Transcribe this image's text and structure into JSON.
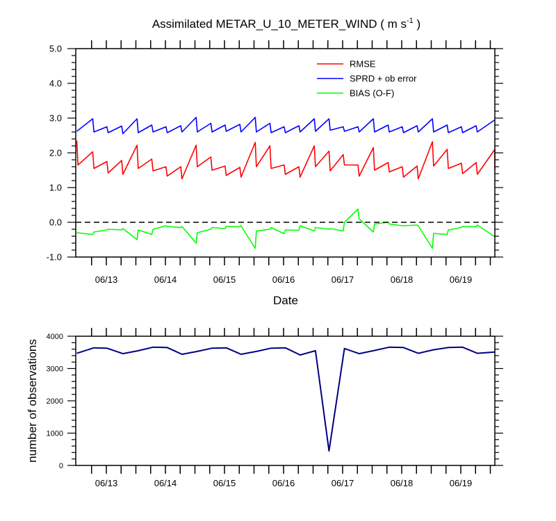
{
  "title": {
    "main": "Assimilated METAR_U_10_METER_WIND ( m s",
    "sup": "-1",
    "tail": " )"
  },
  "colors": {
    "rmse": "#ff0000",
    "sprd": "#0000ff",
    "bias": "#00ff00",
    "obs": "#000080"
  },
  "chart_data": [
    {
      "type": "line",
      "title": "Assimilated METAR_U_10_METER_WIND ( m s-1 )",
      "xlabel": "Date",
      "ylabel": "",
      "x_tick_labels": [
        "06/13",
        "06/14",
        "06/15",
        "06/16",
        "06/17",
        "06/18",
        "06/19"
      ],
      "y_tick_labels": [
        "5.0",
        "4.0",
        "3.0",
        "2.0",
        "1.0",
        "0.0",
        "-1.0"
      ],
      "ylim": [
        -1,
        5
      ],
      "xlim": [
        0,
        7.1
      ],
      "legend_position": "top-right",
      "zero_line": "dashed",
      "series": [
        {
          "name": "RMSE",
          "color": "#ff0000",
          "points": [
            [
              0,
              2.35
            ],
            [
              0.02,
              1.65
            ],
            [
              0.27,
              2.03
            ],
            [
              0.29,
              1.55
            ],
            [
              0.51,
              1.75
            ],
            [
              0.53,
              1.42
            ],
            [
              0.76,
              1.78
            ],
            [
              0.78,
              1.38
            ],
            [
              1.02,
              2.22
            ],
            [
              1.04,
              1.55
            ],
            [
              1.27,
              1.82
            ],
            [
              1.29,
              1.48
            ],
            [
              1.51,
              1.6
            ],
            [
              1.53,
              1.33
            ],
            [
              1.76,
              1.6
            ],
            [
              1.78,
              1.25
            ],
            [
              2.02,
              2.22
            ],
            [
              2.04,
              1.6
            ],
            [
              2.27,
              1.88
            ],
            [
              2.29,
              1.5
            ],
            [
              2.51,
              1.62
            ],
            [
              2.53,
              1.35
            ],
            [
              2.76,
              1.58
            ],
            [
              2.78,
              1.3
            ],
            [
              3.02,
              2.3
            ],
            [
              3.04,
              1.6
            ],
            [
              3.27,
              2.2
            ],
            [
              3.29,
              1.55
            ],
            [
              3.51,
              1.65
            ],
            [
              3.53,
              1.38
            ],
            [
              3.76,
              1.6
            ],
            [
              3.78,
              1.3
            ],
            [
              4.02,
              2.2
            ],
            [
              4.04,
              1.6
            ],
            [
              4.27,
              2.05
            ],
            [
              4.29,
              1.48
            ],
            [
              4.51,
              1.95
            ],
            [
              4.53,
              1.65
            ],
            [
              4.76,
              1.65
            ],
            [
              4.78,
              1.33
            ],
            [
              5.02,
              2.15
            ],
            [
              5.04,
              1.5
            ],
            [
              5.27,
              1.72
            ],
            [
              5.29,
              1.45
            ],
            [
              5.51,
              1.6
            ],
            [
              5.53,
              1.3
            ],
            [
              5.76,
              1.62
            ],
            [
              5.78,
              1.25
            ],
            [
              6.02,
              2.32
            ],
            [
              6.04,
              1.62
            ],
            [
              6.27,
              2.1
            ],
            [
              6.29,
              1.55
            ],
            [
              6.51,
              1.7
            ],
            [
              6.53,
              1.4
            ],
            [
              6.76,
              1.72
            ],
            [
              6.78,
              1.38
            ],
            [
              7.08,
              2.1
            ],
            [
              7.1,
              1.5
            ]
          ]
        },
        {
          "name": "SPRD + ob error",
          "color": "#0000ff",
          "points": [
            [
              0,
              2.62
            ],
            [
              0.27,
              2.98
            ],
            [
              0.29,
              2.6
            ],
            [
              0.51,
              2.75
            ],
            [
              0.53,
              2.58
            ],
            [
              0.76,
              2.77
            ],
            [
              0.78,
              2.55
            ],
            [
              1.02,
              2.98
            ],
            [
              1.04,
              2.58
            ],
            [
              1.27,
              2.8
            ],
            [
              1.29,
              2.6
            ],
            [
              1.51,
              2.75
            ],
            [
              1.53,
              2.58
            ],
            [
              1.76,
              2.78
            ],
            [
              1.78,
              2.6
            ],
            [
              2.02,
              3.02
            ],
            [
              2.04,
              2.6
            ],
            [
              2.27,
              2.85
            ],
            [
              2.29,
              2.6
            ],
            [
              2.51,
              2.8
            ],
            [
              2.53,
              2.62
            ],
            [
              2.76,
              2.82
            ],
            [
              2.78,
              2.6
            ],
            [
              3.02,
              3.02
            ],
            [
              3.04,
              2.6
            ],
            [
              3.27,
              2.85
            ],
            [
              3.29,
              2.58
            ],
            [
              3.51,
              2.75
            ],
            [
              3.53,
              2.58
            ],
            [
              3.76,
              2.78
            ],
            [
              3.78,
              2.6
            ],
            [
              4.02,
              2.98
            ],
            [
              4.04,
              2.62
            ],
            [
              4.27,
              2.98
            ],
            [
              4.29,
              2.65
            ],
            [
              4.51,
              2.75
            ],
            [
              4.53,
              2.62
            ],
            [
              4.76,
              2.75
            ],
            [
              4.78,
              2.6
            ],
            [
              5.02,
              2.98
            ],
            [
              5.04,
              2.6
            ],
            [
              5.27,
              2.8
            ],
            [
              5.29,
              2.6
            ],
            [
              5.51,
              2.75
            ],
            [
              5.53,
              2.58
            ],
            [
              5.76,
              2.78
            ],
            [
              5.78,
              2.6
            ],
            [
              6.02,
              2.98
            ],
            [
              6.04,
              2.6
            ],
            [
              6.27,
              2.8
            ],
            [
              6.29,
              2.58
            ],
            [
              6.51,
              2.75
            ],
            [
              6.53,
              2.58
            ],
            [
              6.76,
              2.78
            ],
            [
              6.78,
              2.6
            ],
            [
              7.1,
              2.95
            ]
          ]
        },
        {
          "name": "BIAS (O-F)",
          "color": "#00ff00",
          "points": [
            [
              0,
              -0.3
            ],
            [
              0.27,
              -0.35
            ],
            [
              0.29,
              -0.28
            ],
            [
              0.51,
              -0.22
            ],
            [
              0.53,
              -0.2
            ],
            [
              0.76,
              -0.22
            ],
            [
              0.78,
              -0.18
            ],
            [
              1.02,
              -0.5
            ],
            [
              1.04,
              -0.22
            ],
            [
              1.27,
              -0.35
            ],
            [
              1.29,
              -0.2
            ],
            [
              1.51,
              -0.1
            ],
            [
              1.53,
              -0.12
            ],
            [
              1.76,
              -0.15
            ],
            [
              1.78,
              -0.12
            ],
            [
              2.02,
              -0.6
            ],
            [
              2.04,
              -0.3
            ],
            [
              2.27,
              -0.2
            ],
            [
              2.29,
              -0.15
            ],
            [
              2.51,
              -0.18
            ],
            [
              2.53,
              -0.12
            ],
            [
              2.76,
              -0.13
            ],
            [
              2.78,
              -0.1
            ],
            [
              3.02,
              -0.75
            ],
            [
              3.04,
              -0.25
            ],
            [
              3.27,
              -0.2
            ],
            [
              3.29,
              -0.15
            ],
            [
              3.51,
              -0.33
            ],
            [
              3.53,
              -0.22
            ],
            [
              3.76,
              -0.23
            ],
            [
              3.78,
              -0.1
            ],
            [
              4.02,
              -0.25
            ],
            [
              4.04,
              -0.15
            ],
            [
              4.27,
              -0.2
            ],
            [
              4.29,
              -0.18
            ],
            [
              4.51,
              -0.25
            ],
            [
              4.53,
              0
            ],
            [
              4.76,
              0.38
            ],
            [
              4.78,
              0.1
            ],
            [
              5.02,
              -0.28
            ],
            [
              5.04,
              -0.05
            ],
            [
              5.27,
              0
            ],
            [
              5.29,
              -0.05
            ],
            [
              5.51,
              -0.1
            ],
            [
              5.53,
              -0.1
            ],
            [
              5.76,
              -0.08
            ],
            [
              5.78,
              -0.1
            ],
            [
              6.02,
              -0.75
            ],
            [
              6.04,
              -0.32
            ],
            [
              6.27,
              -0.35
            ],
            [
              6.29,
              -0.22
            ],
            [
              6.51,
              -0.15
            ],
            [
              6.53,
              -0.12
            ],
            [
              6.76,
              -0.13
            ],
            [
              6.78,
              -0.08
            ],
            [
              7.1,
              -0.42
            ]
          ]
        }
      ]
    },
    {
      "type": "line",
      "ylabel": "number of observations",
      "xlabel": "",
      "x_tick_labels": [
        "06/13",
        "06/14",
        "06/15",
        "06/16",
        "06/17",
        "06/18",
        "06/19"
      ],
      "y_tick_labels": [
        "4000",
        "3000",
        "2000",
        "1000",
        "0"
      ],
      "ylim": [
        0,
        4000
      ],
      "xlim": [
        0,
        7.1
      ],
      "series": [
        {
          "color": "#000080",
          "points": [
            [
              0,
              3470
            ],
            [
              0.29,
              3640
            ],
            [
              0.51,
              3630
            ],
            [
              0.78,
              3460
            ],
            [
              1.04,
              3550
            ],
            [
              1.29,
              3660
            ],
            [
              1.53,
              3650
            ],
            [
              1.78,
              3440
            ],
            [
              2.04,
              3530
            ],
            [
              2.29,
              3630
            ],
            [
              2.53,
              3640
            ],
            [
              2.78,
              3440
            ],
            [
              3.04,
              3530
            ],
            [
              3.29,
              3630
            ],
            [
              3.53,
              3640
            ],
            [
              3.78,
              3420
            ],
            [
              4.04,
              3550
            ],
            [
              4.27,
              450
            ],
            [
              4.53,
              3620
            ],
            [
              4.78,
              3460
            ],
            [
              5.04,
              3560
            ],
            [
              5.29,
              3660
            ],
            [
              5.53,
              3650
            ],
            [
              5.78,
              3470
            ],
            [
              6.04,
              3580
            ],
            [
              6.29,
              3650
            ],
            [
              6.53,
              3660
            ],
            [
              6.78,
              3470
            ],
            [
              7.1,
              3510
            ]
          ]
        }
      ]
    }
  ]
}
